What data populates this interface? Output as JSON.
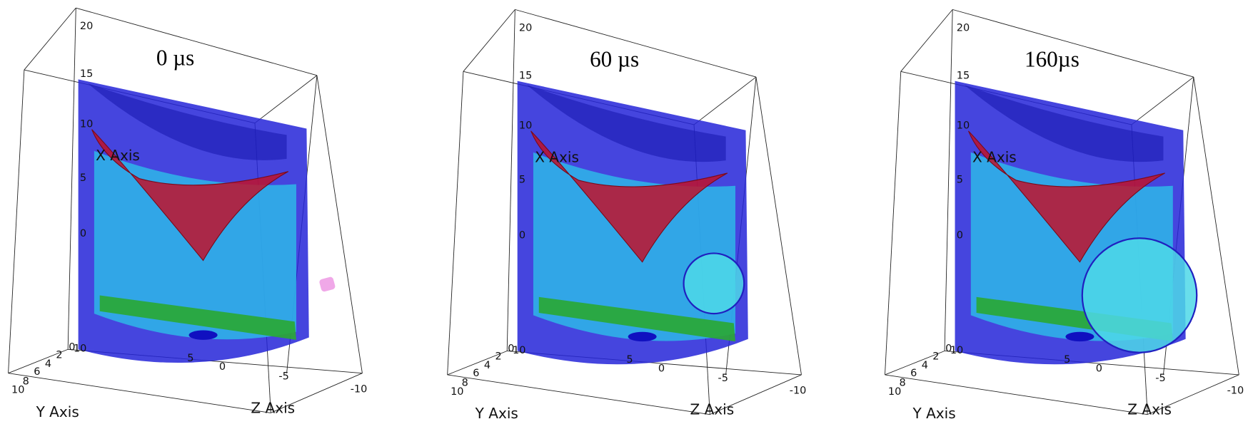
{
  "panels": [
    {
      "time": "0 µs"
    },
    {
      "time": "60 µs"
    },
    {
      "time": "160µs"
    }
  ],
  "axes": {
    "x_title": "X Axis",
    "y_title": "Y Axis",
    "z_title": "Z Axis",
    "vertical_ticks": [
      "20",
      "15",
      "10",
      "5",
      "0"
    ],
    "y_ticks": [
      "10",
      "8",
      "6",
      "4",
      "2",
      "0"
    ],
    "z_ticks": [
      "10",
      "5",
      "0",
      "-5",
      "-10"
    ]
  }
}
